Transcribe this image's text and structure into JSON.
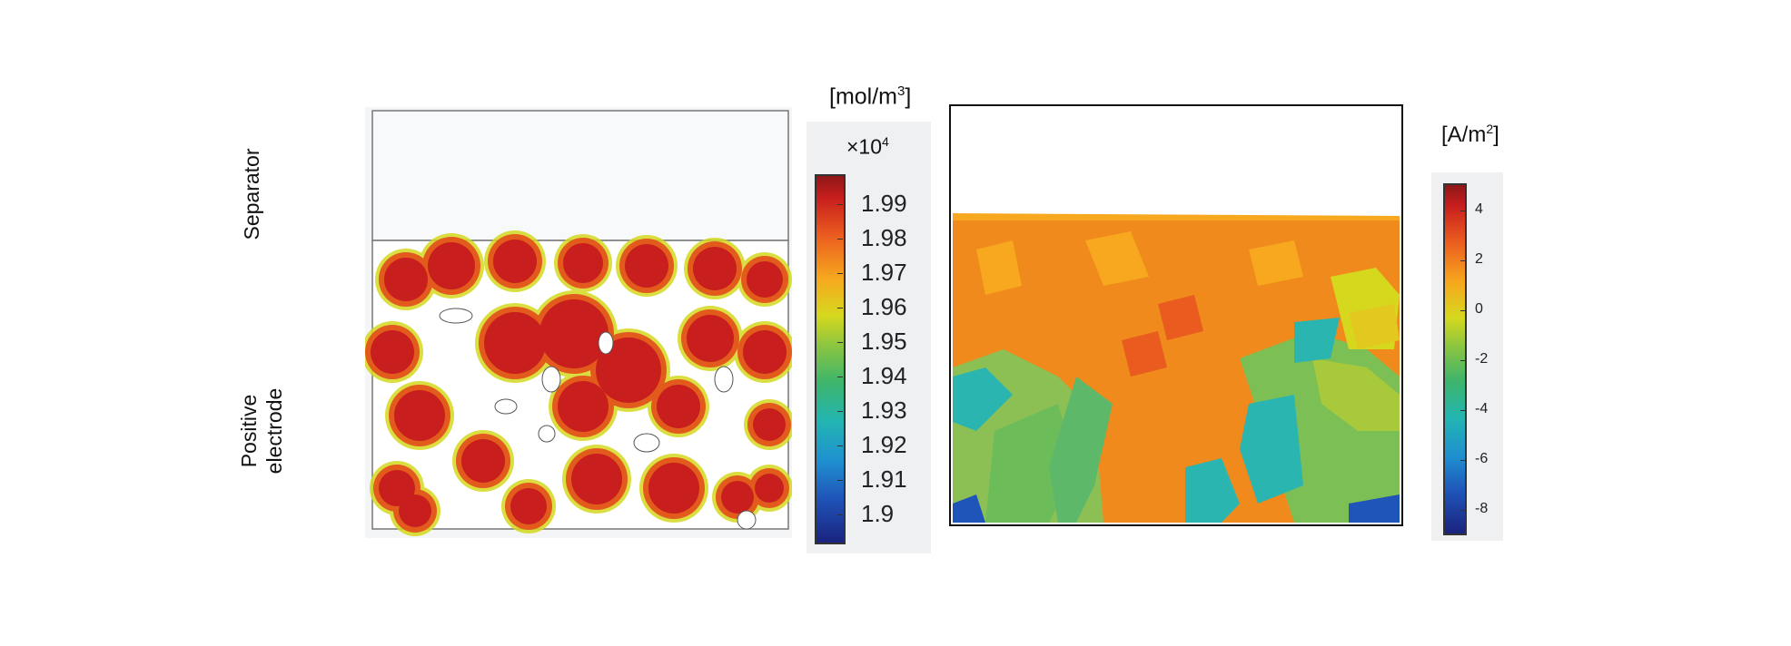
{
  "labels": {
    "separator": "Separator",
    "positive_line1": "Positive",
    "positive_line2": "electrode"
  },
  "concentration_bar": {
    "unit_base": "[mol/m",
    "unit_sup": "3",
    "unit_close": "]",
    "multiplier_base": "×10",
    "multiplier_exp": "4",
    "ticks": [
      "1.99",
      "1.98",
      "1.97",
      "1.96",
      "1.95",
      "1.94",
      "1.93",
      "1.92",
      "1.91",
      "1.9"
    ]
  },
  "current_bar": {
    "unit_base": "[A/m",
    "unit_sup": "2",
    "unit_close": "]",
    "ticks": [
      "4",
      "2",
      "0",
      "-2",
      "-4",
      "-6",
      "-8"
    ]
  },
  "colors": {
    "high": "#c81e1e",
    "mid": "#f08a1c",
    "low": "#1a237e",
    "teal": "#2bb5b0",
    "green": "#7dbf55"
  }
}
